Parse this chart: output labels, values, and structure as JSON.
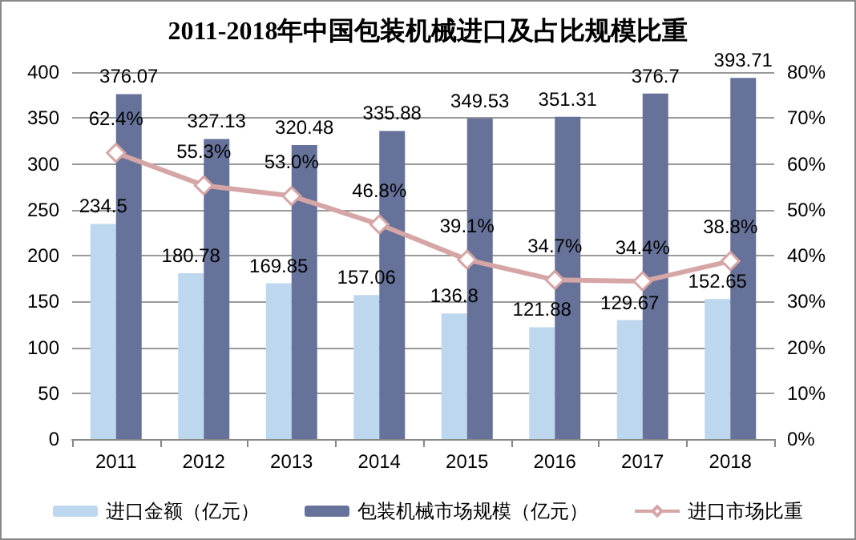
{
  "chart_data": {
    "type": "bar",
    "title": "2011-2018年中国包装机械进口及占比规模比重",
    "categories": [
      "2011",
      "2012",
      "2013",
      "2014",
      "2015",
      "2016",
      "2017",
      "2018"
    ],
    "series": [
      {
        "name": "进口金额（亿元）",
        "color": "#bdd7ee",
        "values": [
          234.5,
          180.78,
          169.85,
          157.06,
          136.8,
          121.88,
          129.67,
          152.65
        ],
        "value_labels": [
          "234.5",
          "180.78",
          "169.85",
          "157.06",
          "136.8",
          "121.88",
          "129.67",
          "152.65"
        ]
      },
      {
        "name": "包装机械市场规模（亿元）",
        "color": "#667299",
        "values": [
          376.07,
          327.13,
          320.48,
          335.88,
          349.53,
          351.31,
          376.7,
          393.71
        ],
        "value_labels": [
          "376.07",
          "327.13",
          "320.48",
          "335.88",
          "349.53",
          "351.31",
          "376.7",
          "393.71"
        ]
      },
      {
        "name": "进口市场比重",
        "type": "line",
        "axis": "y2",
        "color": "#d6a5a5",
        "marker": "diamond",
        "values": [
          62.4,
          55.3,
          53.0,
          46.8,
          39.1,
          34.7,
          34.4,
          38.8
        ],
        "value_labels": [
          "62.4%",
          "55.3%",
          "53.0%",
          "46.8%",
          "39.1%",
          "34.7%",
          "34.4%",
          "38.8%"
        ]
      }
    ],
    "ylim": [
      0,
      400
    ],
    "yticks": [
      0,
      50,
      100,
      150,
      200,
      250,
      300,
      350,
      400
    ],
    "y2lim": [
      0,
      80
    ],
    "y2ticks": [
      {
        "value": 0,
        "label": "0%"
      },
      {
        "value": 10,
        "label": "10%"
      },
      {
        "value": 20,
        "label": "20%"
      },
      {
        "value": 30,
        "label": "30%"
      },
      {
        "value": 40,
        "label": "40%"
      },
      {
        "value": 50,
        "label": "50%"
      },
      {
        "value": 60,
        "label": "60%"
      },
      {
        "value": 70,
        "label": "70%"
      },
      {
        "value": 80,
        "label": "80%"
      }
    ],
    "grid": "y",
    "legend": "bottom"
  }
}
